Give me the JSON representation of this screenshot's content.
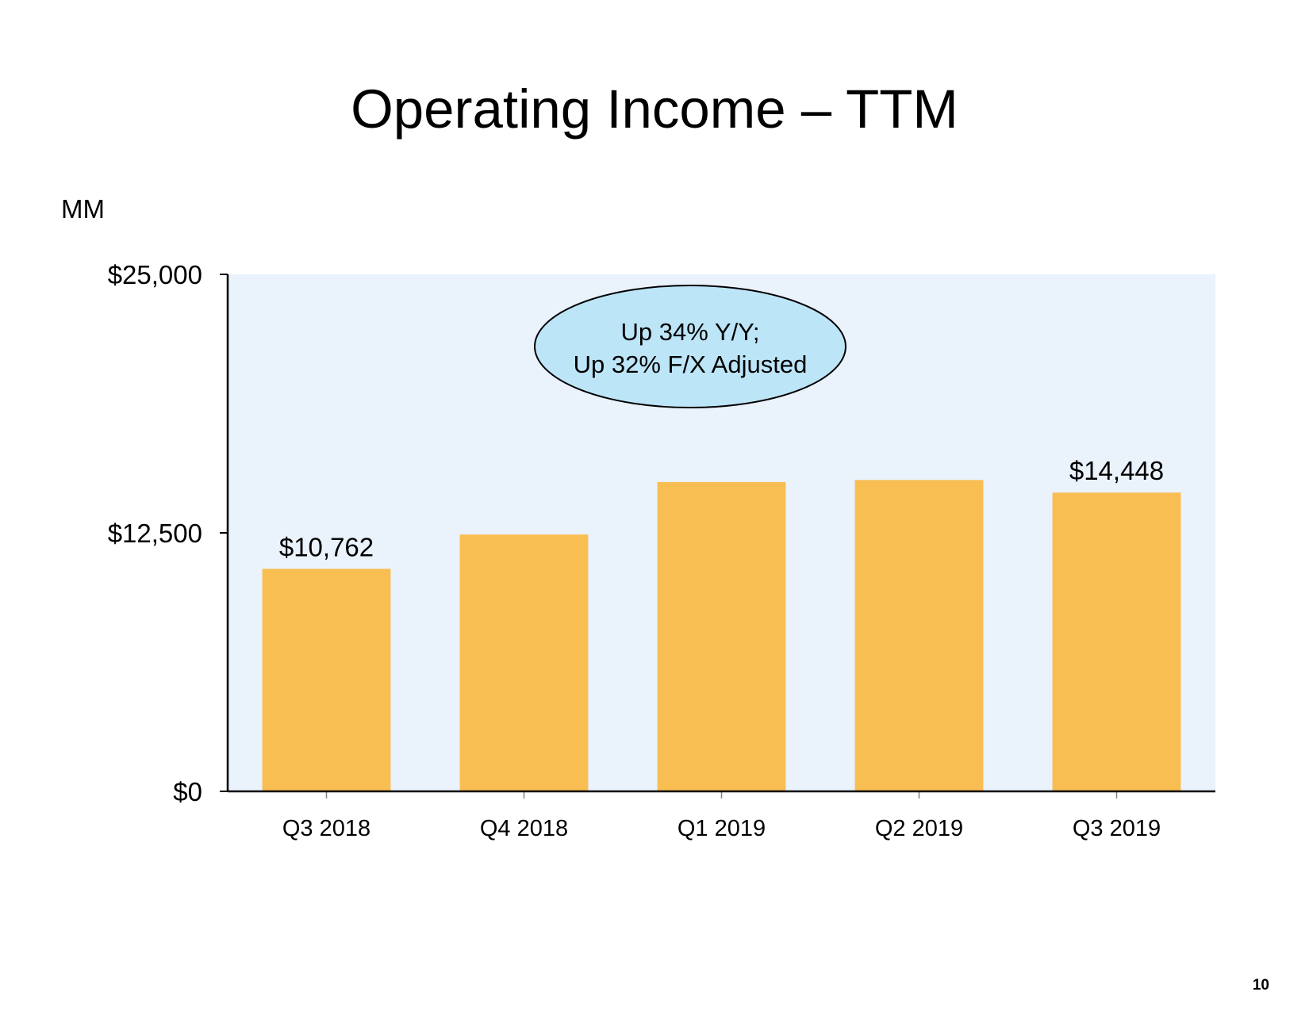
{
  "slide": {
    "title": "Operating Income – TTM",
    "unit_label": "MM",
    "page_number": "10"
  },
  "colors": {
    "bar": "#F9BE52",
    "plot_background": "#EAF2FC",
    "callout_fill": "#BDE5F8",
    "axis": "#000000"
  },
  "chart_data": {
    "type": "bar",
    "title": "Operating Income – TTM",
    "xlabel": "",
    "ylabel": "MM",
    "categories": [
      "Q3 2018",
      "Q4 2018",
      "Q1 2019",
      "Q2 2019",
      "Q3 2019"
    ],
    "values": [
      10762,
      12421,
      14957,
      15055,
      14448
    ],
    "value_labels": [
      "$10,762",
      "",
      "",
      "",
      "$14,448"
    ],
    "ylim": [
      0,
      25000
    ],
    "yticks": [
      0,
      12500,
      25000
    ],
    "ytick_labels": [
      "$0",
      "$12,500",
      "$25,000"
    ],
    "grid": false,
    "legend": "none",
    "annotation": {
      "lines": [
        "Up 34% Y/Y;",
        "Up 32% F/X Adjusted"
      ]
    }
  }
}
